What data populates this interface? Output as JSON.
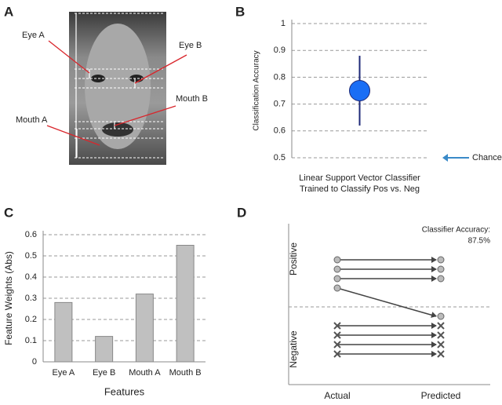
{
  "panel_a": {
    "letter": "A",
    "labels": [
      "Eye A",
      "Eye B",
      "Mouth B",
      "Mouth A"
    ]
  },
  "chart_data": [
    {
      "letter": "B",
      "type": "point",
      "ylabel": "Classification Accuracy",
      "xlabel": [
        "Linear Support Vector Classifier",
        "Trained to Classify Pos vs. Neg"
      ],
      "values": [
        0.75
      ],
      "error": [
        0.13
      ],
      "color": "#1a6ef5",
      "error_color": "#1f2a78",
      "ylim": [
        0.5,
        1
      ],
      "yticks": [
        0.5,
        0.6,
        0.7,
        0.8,
        0.9,
        1
      ],
      "grid": true,
      "annotation": {
        "text": "Chance",
        "value": 0.5,
        "color": "#3a8ac8"
      }
    },
    {
      "letter": "C",
      "type": "bar",
      "ylabel": "Feature Weights (Abs)",
      "xlabel": "Features",
      "categories": [
        "Eye A",
        "Eye B",
        "Mouth A",
        "Mouth B"
      ],
      "values": [
        0.28,
        0.12,
        0.32,
        0.55
      ],
      "color": "#c0c0c0",
      "ylim": [
        0,
        0.6
      ],
      "yticks": [
        0,
        0.1,
        0.2,
        0.3,
        0.4,
        0.5,
        0.6
      ],
      "grid": true
    },
    {
      "letter": "D",
      "type": "flow",
      "categories": [
        "Actual",
        "Predicted"
      ],
      "classes": [
        "Positive",
        "Negative"
      ],
      "actual": [
        0,
        0,
        0,
        0,
        1,
        1,
        1,
        1
      ],
      "predicted": [
        0,
        0,
        0,
        1,
        1,
        1,
        1,
        1
      ],
      "annotation": [
        "Classifier Accuracy:",
        "87.5%"
      ]
    }
  ]
}
